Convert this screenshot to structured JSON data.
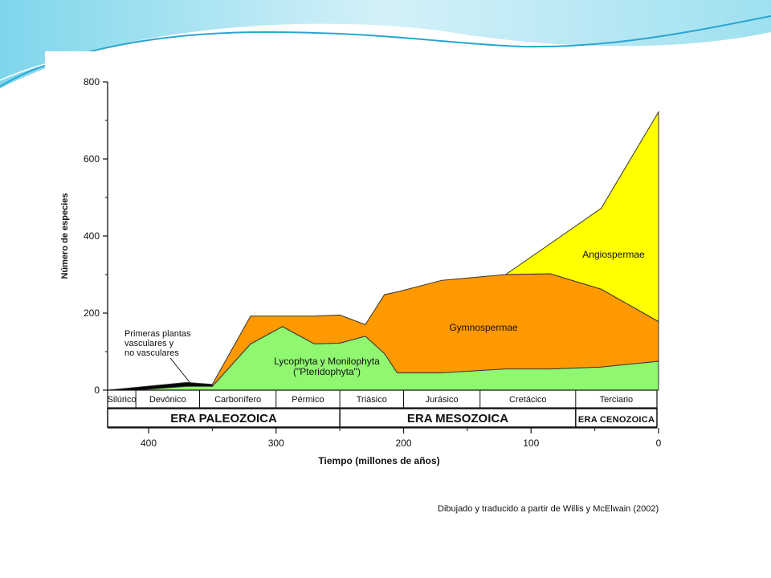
{
  "credit": "Dibujado y traducido a partir de Willis y McElwain (2002)",
  "colors": {
    "angiospermae": "#ffff00",
    "gymnospermae": "#ff9900",
    "pteridophyta": "#90f870",
    "primeras": "#000000",
    "banner_light": "#d4f1f8",
    "banner_mid": "#7fd6ec",
    "banner_dark": "#2aa5d1"
  },
  "chart_data": {
    "type": "area",
    "ylabel": "Número de especies",
    "xlabel": "Tiempo (millones de años)",
    "xlim": [
      440,
      0
    ],
    "ylim": [
      0,
      800
    ],
    "xticks": [
      400,
      300,
      200,
      100,
      0
    ],
    "yticks": [
      0,
      200,
      400,
      600,
      800
    ],
    "series": [
      {
        "name": "Primeras plantas vasculares y no vasculares",
        "color_key": "primeras",
        "x": [
          440,
          370,
          350,
          350
        ],
        "lower": [
          0,
          0,
          0,
          0
        ],
        "upper": [
          0,
          20,
          15,
          0
        ]
      },
      {
        "name": "Lycophyta y Monilophyta (\"Pteridophyta\")",
        "color_key": "pteridophyta",
        "x": [
          410,
          370,
          350,
          320,
          295,
          270,
          250,
          230,
          215,
          205,
          170,
          110,
          85,
          50,
          0
        ],
        "lower": [
          0,
          0,
          0,
          0,
          0,
          0,
          0,
          0,
          0,
          0,
          0,
          0,
          0,
          0,
          0
        ],
        "upper": [
          0,
          10,
          10,
          120,
          165,
          120,
          122,
          140,
          95,
          45,
          45,
          62,
          55,
          60,
          75
        ]
      },
      {
        "name": "Gymnospermae",
        "color_key": "gymnospermae",
        "x": [
          350,
          320,
          295,
          270,
          250,
          230,
          215,
          205,
          170,
          120,
          85,
          45,
          0
        ],
        "lower": [
          10,
          120,
          165,
          120,
          122,
          140,
          95,
          45,
          45,
          55,
          55,
          60,
          75
        ],
        "upper": [
          15,
          192,
          192,
          192,
          195,
          170,
          248,
          255,
          285,
          300,
          302,
          262,
          178
        ]
      },
      {
        "name": "Angiospermae",
        "color_key": "angiospermae",
        "x": [
          120,
          85,
          45,
          0
        ],
        "lower": [
          300,
          302,
          262,
          178
        ],
        "upper": [
          300,
          380,
          472,
          722
        ]
      }
    ],
    "annotations": {
      "primeras": [
        "Primeras plantas",
        "vasculares y",
        "no vasculares"
      ],
      "pteridophyta": [
        "Lycophyta y Monilophyta",
        "(\"Pteridophyta\")"
      ],
      "gymnospermae": "Gymnospermae",
      "angiospermae": "Angiospermae"
    },
    "periods": [
      {
        "label": "Silúrico",
        "start": 440,
        "end": 410
      },
      {
        "label": "Devónico",
        "start": 410,
        "end": 360
      },
      {
        "label": "Carbonífero",
        "start": 360,
        "end": 300
      },
      {
        "label": "Pérmico",
        "start": 300,
        "end": 250
      },
      {
        "label": "Triásico",
        "start": 250,
        "end": 200
      },
      {
        "label": "Jurásico",
        "start": 200,
        "end": 140
      },
      {
        "label": "Cretácico",
        "start": 140,
        "end": 65
      },
      {
        "label": "Terciario",
        "start": 65,
        "end": 0
      }
    ],
    "eras": [
      {
        "label": "ERA PALEOZOICA",
        "start": 440,
        "end": 250
      },
      {
        "label": "ERA MESOZOICA",
        "start": 250,
        "end": 65
      },
      {
        "label": "ERA CENOZOICA",
        "start": 65,
        "end": 0
      }
    ]
  }
}
